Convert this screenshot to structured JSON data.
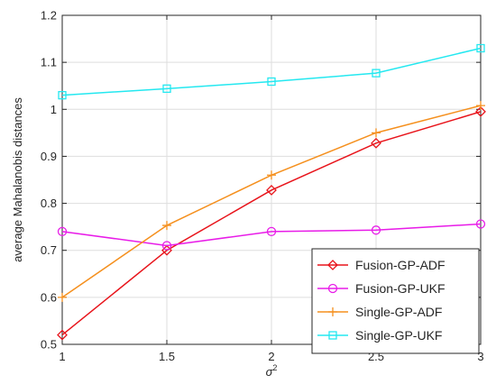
{
  "chart_data": {
    "type": "line",
    "xlabel_base": "σ",
    "xlabel_sup": "2",
    "ylabel": "average Mahalanobis distances",
    "xlim": [
      1,
      3
    ],
    "ylim": [
      0.5,
      1.2
    ],
    "xticks": [
      "1",
      "1.5",
      "2",
      "2.5",
      "3"
    ],
    "yticks": [
      "0.5",
      "0.6",
      "0.7",
      "0.8",
      "0.9",
      "1",
      "1.1",
      "1.2"
    ],
    "grid": true,
    "legend_position": "bottom-right",
    "x": [
      1,
      1.5,
      2,
      2.5,
      3
    ],
    "series": [
      {
        "name": "Fusion-GP-ADF",
        "color": "#e8141b",
        "marker": "diamond",
        "values": [
          0.52,
          0.7,
          0.828,
          0.928,
          0.995
        ]
      },
      {
        "name": "Fusion-GP-UKF",
        "color": "#e81ce8",
        "marker": "circle",
        "values": [
          0.74,
          0.71,
          0.74,
          0.743,
          0.756
        ]
      },
      {
        "name": "Single-GP-ADF",
        "color": "#f5901e",
        "marker": "plus",
        "values": [
          0.6,
          0.753,
          0.86,
          0.95,
          1.008
        ]
      },
      {
        "name": "Single-GP-UKF",
        "color": "#24e8f0",
        "marker": "square",
        "values": [
          1.03,
          1.044,
          1.059,
          1.077,
          1.13
        ]
      }
    ]
  }
}
